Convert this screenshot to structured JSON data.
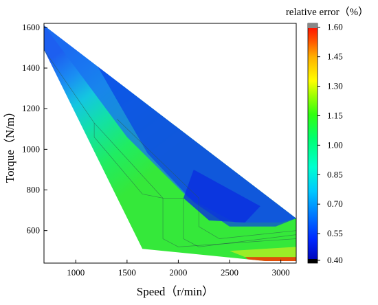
{
  "chart_data": {
    "type": "heatmap",
    "title": "",
    "xlabel": "Speed（r/min）",
    "ylabel": "Torque（N/m）",
    "xlim": [
      690,
      3150
    ],
    "ylim": [
      440,
      1620
    ],
    "x_ticks": [
      1000,
      1500,
      2000,
      2500,
      3000
    ],
    "y_ticks": [
      600,
      800,
      1000,
      1200,
      1400,
      1600
    ],
    "grid": false,
    "colorbar": {
      "title": "relative error（%）",
      "min": 0.4,
      "max": 1.62,
      "ticks": [
        "0.40",
        "0.55",
        "0.70",
        "0.85",
        "1.00",
        "1.15",
        "1.30",
        "1.45",
        "1.60"
      ],
      "legend_position": "right"
    },
    "region_boundary": [
      {
        "speed": 690,
        "torque": 1610
      },
      {
        "speed": 3150,
        "torque": 660
      },
      {
        "speed": 3150,
        "torque": 450
      },
      {
        "speed": 2850,
        "torque": 450
      },
      {
        "speed": 1650,
        "torque": 510
      },
      {
        "speed": 690,
        "torque": 1490
      }
    ],
    "error_samples": [
      {
        "speed": 1300,
        "torque": 1300,
        "error": 0.58
      },
      {
        "speed": 2450,
        "torque": 680,
        "error": 0.5
      },
      {
        "speed": 2000,
        "torque": 1000,
        "error": 0.55
      },
      {
        "speed": 1500,
        "torque": 800,
        "error": 0.95
      },
      {
        "speed": 1700,
        "torque": 600,
        "error": 1.0
      },
      {
        "speed": 3050,
        "torque": 500,
        "error": 1.6
      }
    ]
  }
}
